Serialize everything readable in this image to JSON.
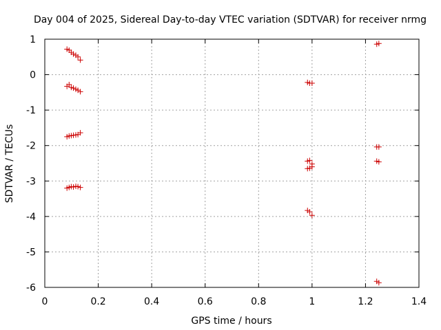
{
  "chart_data": {
    "type": "scatter",
    "title": "Day 004 of 2025, Sidereal Day-to-day VTEC variation (SDTVAR) for receiver nrmg",
    "xlabel": "GPS time / hours",
    "ylabel": "SDTVAR / TECUs",
    "xlim": [
      0,
      1.4
    ],
    "ylim": [
      -6,
      1
    ],
    "xticks": [
      0,
      0.2,
      0.4,
      0.6,
      0.8,
      1,
      1.2,
      1.4
    ],
    "xtick_labels": [
      "0",
      "0.2",
      "0.4",
      "0.6",
      "0.8",
      "1",
      "1.2",
      "1.4"
    ],
    "yticks": [
      1,
      0,
      -1,
      -2,
      -3,
      -4,
      -5,
      -6
    ],
    "ytick_labels": [
      "1",
      "0",
      "-1",
      "-2",
      "-3",
      "-4",
      "-5",
      "-6"
    ],
    "grid": true,
    "marker": "+",
    "color": "#cc0000",
    "series": [
      {
        "name": "SDTVAR",
        "points": [
          [
            0.083,
            0.72
          ],
          [
            0.091,
            0.69
          ],
          [
            0.099,
            0.63
          ],
          [
            0.107,
            0.58
          ],
          [
            0.116,
            0.55
          ],
          [
            0.124,
            0.5
          ],
          [
            0.133,
            0.41
          ],
          [
            0.083,
            -0.33
          ],
          [
            0.091,
            -0.28
          ],
          [
            0.099,
            -0.36
          ],
          [
            0.107,
            -0.38
          ],
          [
            0.116,
            -0.41
          ],
          [
            0.124,
            -0.44
          ],
          [
            0.133,
            -0.48
          ],
          [
            0.083,
            -1.75
          ],
          [
            0.091,
            -1.73
          ],
          [
            0.099,
            -1.72
          ],
          [
            0.107,
            -1.71
          ],
          [
            0.116,
            -1.7
          ],
          [
            0.124,
            -1.69
          ],
          [
            0.133,
            -1.64
          ],
          [
            0.083,
            -3.2
          ],
          [
            0.091,
            -3.18
          ],
          [
            0.099,
            -3.16
          ],
          [
            0.107,
            -3.17
          ],
          [
            0.116,
            -3.15
          ],
          [
            0.124,
            -3.16
          ],
          [
            0.133,
            -3.18
          ],
          [
            0.983,
            -0.22
          ],
          [
            0.991,
            -0.24
          ],
          [
            1.0,
            -0.24
          ],
          [
            0.983,
            -2.44
          ],
          [
            0.991,
            -2.42
          ],
          [
            1.0,
            -2.52
          ],
          [
            0.983,
            -2.65
          ],
          [
            0.991,
            -2.64
          ],
          [
            1.0,
            -2.6
          ],
          [
            0.983,
            -3.83
          ],
          [
            0.991,
            -3.87
          ],
          [
            1.0,
            -3.97
          ],
          [
            1.242,
            0.86
          ],
          [
            1.25,
            0.88
          ],
          [
            1.242,
            -2.04
          ],
          [
            1.25,
            -2.04
          ],
          [
            1.242,
            -2.44
          ],
          [
            1.25,
            -2.46
          ],
          [
            1.242,
            -5.83
          ],
          [
            1.25,
            -5.87
          ]
        ]
      }
    ]
  }
}
